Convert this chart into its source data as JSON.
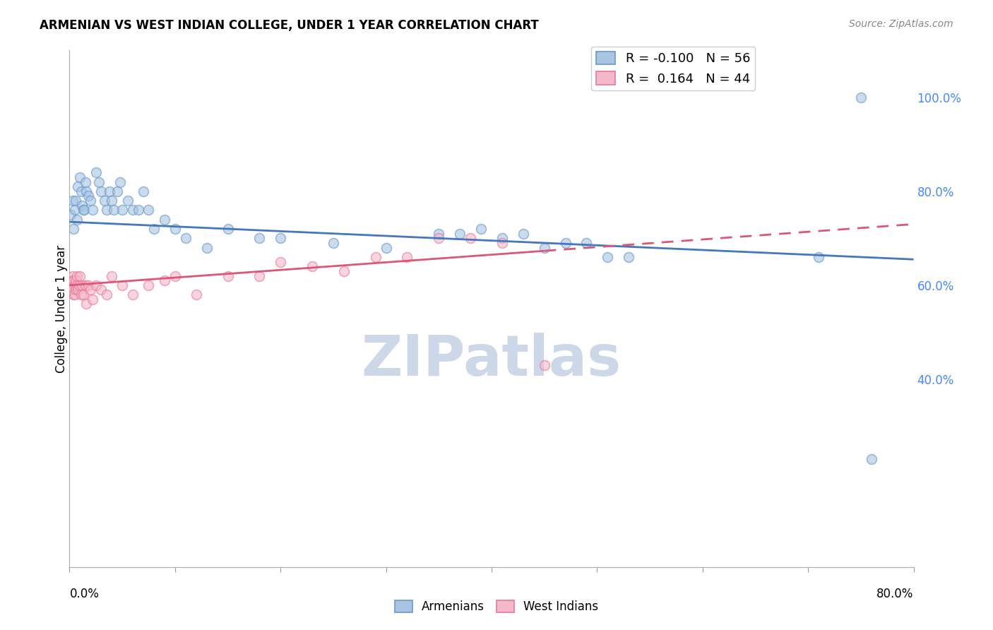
{
  "title": "ARMENIAN VS WEST INDIAN COLLEGE, UNDER 1 YEAR CORRELATION CHART",
  "source": "Source: ZipAtlas.com",
  "ylabel": "College, Under 1 year",
  "color_armenians_fill": "#a8c4e0",
  "color_armenians_edge": "#6699cc",
  "color_west_indians_fill": "#f4b8c8",
  "color_west_indians_edge": "#e87898",
  "color_line_armenians": "#4477bb",
  "color_line_west_indians": "#dd5577",
  "xlim": [
    0.0,
    0.8
  ],
  "ylim": [
    0.0,
    1.1
  ],
  "background_color": "#ffffff",
  "grid_color": "#cccccc",
  "watermark": "ZIPatlas",
  "watermark_color": "#ccd8e8",
  "right_ytick_vals": [
    0.4,
    0.6,
    0.8,
    1.0
  ],
  "right_ytick_labels": [
    "40.0%",
    "60.0%",
    "80.0%",
    "100.0%"
  ],
  "arm_line_start": 0.735,
  "arm_line_end": 0.655,
  "wi_line_start": 0.6,
  "wi_line_end": 0.73,
  "legend_R_arm": "-0.100",
  "legend_N_arm": "56",
  "legend_R_wi": "0.164",
  "legend_N_wi": "44",
  "arm_x": [
    0.001,
    0.003,
    0.004,
    0.005,
    0.006,
    0.007,
    0.008,
    0.01,
    0.011,
    0.012,
    0.013,
    0.014,
    0.015,
    0.016,
    0.018,
    0.02,
    0.022,
    0.025,
    0.028,
    0.03,
    0.033,
    0.035,
    0.038,
    0.04,
    0.042,
    0.045,
    0.048,
    0.05,
    0.055,
    0.06,
    0.065,
    0.07,
    0.075,
    0.08,
    0.09,
    0.1,
    0.11,
    0.13,
    0.15,
    0.18,
    0.2,
    0.25,
    0.3,
    0.35,
    0.37,
    0.39,
    0.41,
    0.43,
    0.45,
    0.47,
    0.49,
    0.51,
    0.53,
    0.71,
    0.75,
    0.76
  ],
  "arm_y": [
    0.75,
    0.78,
    0.72,
    0.76,
    0.78,
    0.74,
    0.81,
    0.83,
    0.8,
    0.77,
    0.76,
    0.76,
    0.82,
    0.8,
    0.79,
    0.78,
    0.76,
    0.84,
    0.82,
    0.8,
    0.78,
    0.76,
    0.8,
    0.78,
    0.76,
    0.8,
    0.82,
    0.76,
    0.78,
    0.76,
    0.76,
    0.8,
    0.76,
    0.72,
    0.74,
    0.72,
    0.7,
    0.68,
    0.72,
    0.7,
    0.7,
    0.69,
    0.68,
    0.71,
    0.71,
    0.72,
    0.7,
    0.71,
    0.68,
    0.69,
    0.69,
    0.66,
    0.66,
    0.66,
    1.0,
    0.23
  ],
  "wi_x": [
    0.001,
    0.002,
    0.003,
    0.003,
    0.004,
    0.004,
    0.005,
    0.005,
    0.006,
    0.006,
    0.007,
    0.007,
    0.008,
    0.009,
    0.01,
    0.011,
    0.012,
    0.013,
    0.015,
    0.016,
    0.018,
    0.02,
    0.022,
    0.025,
    0.03,
    0.035,
    0.04,
    0.05,
    0.06,
    0.075,
    0.09,
    0.1,
    0.12,
    0.15,
    0.18,
    0.2,
    0.23,
    0.26,
    0.29,
    0.32,
    0.35,
    0.38,
    0.41,
    0.45
  ],
  "wi_y": [
    0.6,
    0.59,
    0.62,
    0.61,
    0.61,
    0.58,
    0.58,
    0.6,
    0.59,
    0.61,
    0.62,
    0.6,
    0.59,
    0.6,
    0.62,
    0.58,
    0.6,
    0.58,
    0.6,
    0.56,
    0.6,
    0.59,
    0.57,
    0.6,
    0.59,
    0.58,
    0.62,
    0.6,
    0.58,
    0.6,
    0.61,
    0.62,
    0.58,
    0.62,
    0.62,
    0.65,
    0.64,
    0.63,
    0.66,
    0.66,
    0.7,
    0.7,
    0.69,
    0.43
  ]
}
